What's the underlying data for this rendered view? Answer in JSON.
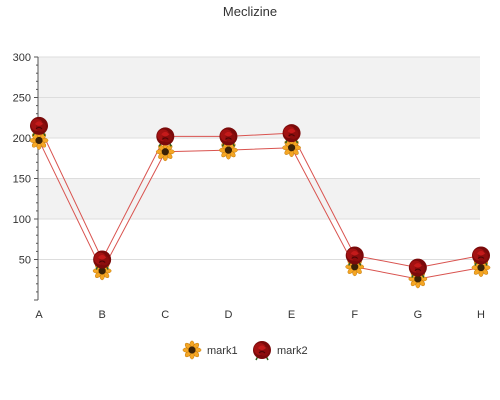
{
  "chart_data": {
    "type": "line",
    "title": "Meclizine",
    "xlabel": "",
    "ylabel": "",
    "categories": [
      "A",
      "B",
      "C",
      "D",
      "E",
      "F",
      "G",
      "H"
    ],
    "ylim": [
      0,
      300
    ],
    "yticks": [
      50,
      100,
      150,
      200,
      250,
      300
    ],
    "grid": "horizontal alternating bands",
    "legend": "bottom-center",
    "series": [
      {
        "name": "mark1",
        "values": [
          197,
          36,
          183,
          185,
          188,
          41,
          26,
          40
        ],
        "color": "#d9534f",
        "marker": "sunflower"
      },
      {
        "name": "mark2",
        "values": [
          215,
          50,
          202,
          202,
          206,
          55,
          40,
          55
        ],
        "color": "#d9534f",
        "marker": "red-rose"
      }
    ],
    "colors": {
      "band": "#f2f2f2",
      "grid": "#dddddd",
      "axis": "#555555",
      "line": "#d9534f"
    }
  }
}
